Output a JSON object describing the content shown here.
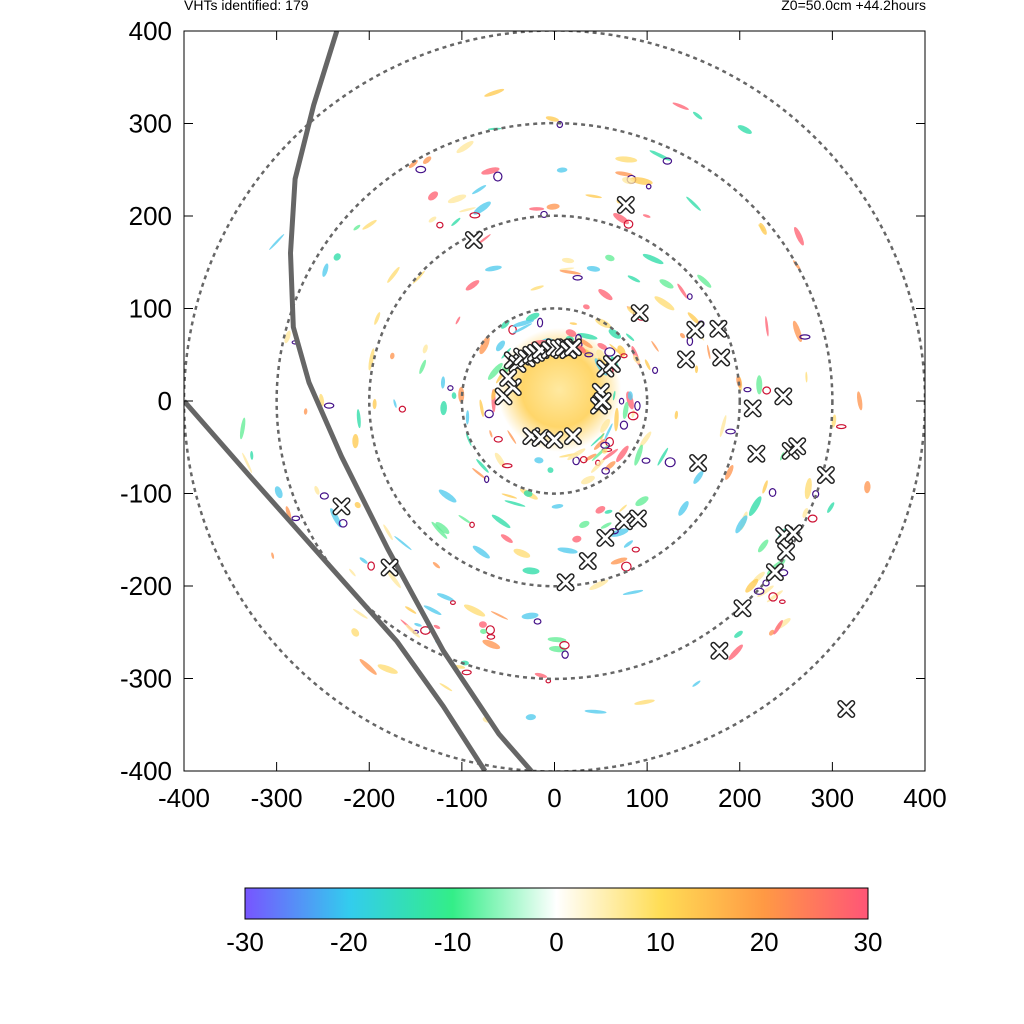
{
  "header": {
    "vht_count_label": "VHTs identified: 179",
    "run_info": "Z0=50.0cm  +44.2hours"
  },
  "chart_data": {
    "type": "scatter",
    "title": "",
    "xlabel": "",
    "ylabel": "",
    "xlim": [
      -400,
      400
    ],
    "ylim": [
      -400,
      400
    ],
    "x_ticks": [
      "-400",
      "-300",
      "-200",
      "-100",
      "0",
      "100",
      "200",
      "300",
      "400"
    ],
    "y_ticks": [
      "400",
      "300",
      "200",
      "100",
      "0",
      "-100",
      "-200",
      "-300",
      "-400"
    ],
    "grid": false,
    "range_rings": [
      100,
      200,
      300,
      400
    ],
    "colorbar": {
      "ticks": [
        "-30",
        "-20",
        "-10",
        "0",
        "10",
        "20",
        "30"
      ],
      "min": -30,
      "max": 30,
      "colors": [
        "#7755ff",
        "#33ccee",
        "#33ee88",
        "#ffffff",
        "#ffdd55",
        "#ff9944",
        "#ff5577"
      ]
    },
    "vht_markers": [
      {
        "x": -87,
        "y": 174
      },
      {
        "x": 77,
        "y": 212
      },
      {
        "x": 92,
        "y": 95
      },
      {
        "x": -45,
        "y": 44
      },
      {
        "x": -40,
        "y": 40
      },
      {
        "x": -35,
        "y": 48
      },
      {
        "x": -30,
        "y": 46
      },
      {
        "x": -25,
        "y": 50
      },
      {
        "x": -20,
        "y": 52
      },
      {
        "x": -15,
        "y": 55
      },
      {
        "x": -5,
        "y": 55
      },
      {
        "x": 0,
        "y": 58
      },
      {
        "x": 5,
        "y": 57
      },
      {
        "x": 10,
        "y": 58
      },
      {
        "x": 15,
        "y": 55
      },
      {
        "x": 20,
        "y": 58
      },
      {
        "x": -55,
        "y": 5
      },
      {
        "x": -45,
        "y": 15
      },
      {
        "x": -50,
        "y": 25
      },
      {
        "x": 55,
        "y": 35
      },
      {
        "x": 62,
        "y": 40
      },
      {
        "x": 50,
        "y": 10
      },
      {
        "x": 48,
        "y": -5
      },
      {
        "x": 52,
        "y": 0
      },
      {
        "x": -25,
        "y": -38
      },
      {
        "x": -15,
        "y": -40
      },
      {
        "x": 0,
        "y": -42
      },
      {
        "x": 20,
        "y": -38
      },
      {
        "x": 152,
        "y": 77
      },
      {
        "x": 177,
        "y": 78
      },
      {
        "x": 142,
        "y": 45
      },
      {
        "x": 180,
        "y": 47
      },
      {
        "x": 247,
        "y": 5
      },
      {
        "x": 214,
        "y": -8
      },
      {
        "x": 218,
        "y": -57
      },
      {
        "x": 255,
        "y": -54
      },
      {
        "x": 262,
        "y": -49
      },
      {
        "x": 155,
        "y": -67
      },
      {
        "x": 293,
        "y": -80
      },
      {
        "x": 55,
        "y": -148
      },
      {
        "x": 75,
        "y": -130
      },
      {
        "x": 90,
        "y": -127
      },
      {
        "x": 36,
        "y": -173
      },
      {
        "x": 12,
        "y": -196
      },
      {
        "x": 248,
        "y": -145
      },
      {
        "x": 258,
        "y": -143
      },
      {
        "x": 250,
        "y": -163
      },
      {
        "x": 238,
        "y": -185
      },
      {
        "x": 203,
        "y": -224
      },
      {
        "x": 178,
        "y": -270
      },
      {
        "x": 315,
        "y": -333
      },
      {
        "x": -230,
        "y": -114
      },
      {
        "x": -178,
        "y": -180
      }
    ],
    "tracks": [
      {
        "x": [
          -235,
          -260,
          -280,
          -285,
          -282,
          -265,
          -230,
          -180,
          -120,
          -60,
          -25
        ],
        "y": [
          400,
          320,
          240,
          160,
          80,
          20,
          -60,
          -160,
          -270,
          -360,
          -400
        ]
      },
      {
        "x": [
          -400,
          -330,
          -250,
          -170,
          -120,
          -75
        ],
        "y": [
          0,
          -80,
          -170,
          -260,
          -330,
          -400
        ]
      }
    ]
  }
}
